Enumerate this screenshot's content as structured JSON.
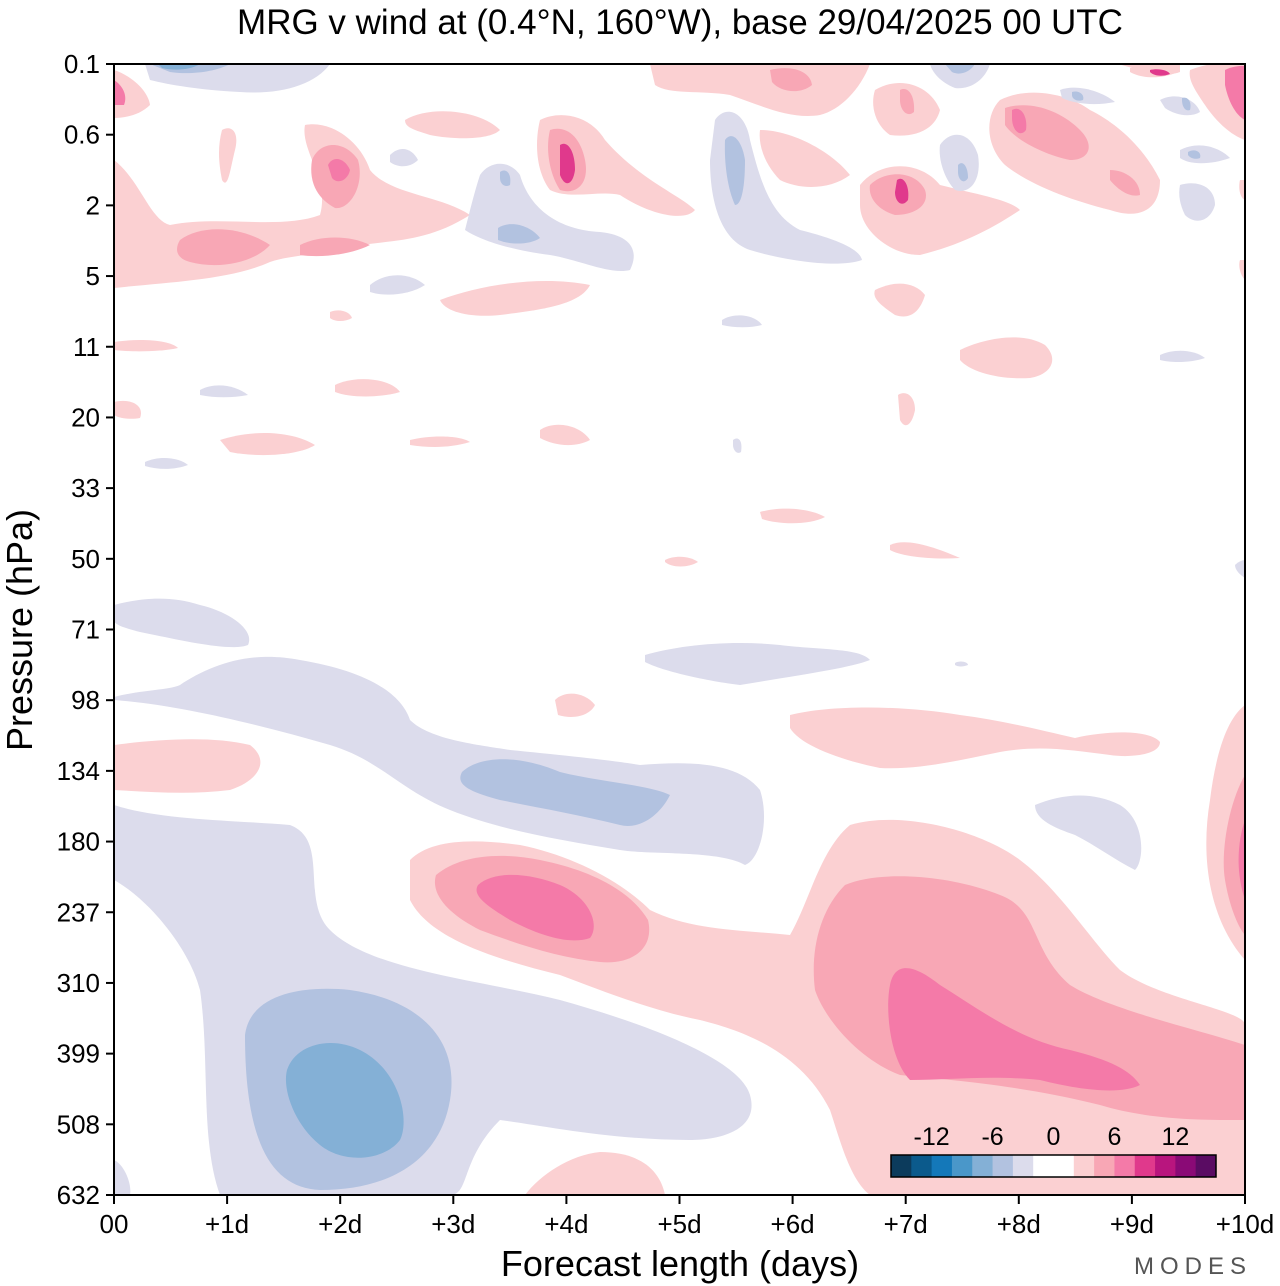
{
  "chart_data": {
    "type": "heatmap",
    "title": "MRG v wind at (0.4°N, 160°W),  base 29/04/2025  00 UTC",
    "xlabel": "Forecast length (days)",
    "ylabel": "Pressure (hPa)",
    "x_ticks": [
      "00",
      "+1d",
      "+2d",
      "+3d",
      "+4d",
      "+5d",
      "+6d",
      "+7d",
      "+8d",
      "+9d",
      "+10d"
    ],
    "xlim_days": [
      0,
      10
    ],
    "y_ticks": [
      "0.1",
      "0.6",
      "2",
      "5",
      "11",
      "20",
      "33",
      "50",
      "71",
      "98",
      "134",
      "180",
      "237",
      "310",
      "399",
      "508",
      "632"
    ],
    "y_axis_inverted": true,
    "ylim_hpa": [
      0.1,
      632
    ],
    "colorbar": {
      "orientation": "horizontal",
      "position": "bottom-right",
      "tick_labels": [
        "-12",
        "-6",
        "0",
        "6",
        "12"
      ],
      "level_step": 2,
      "colors": [
        "#0c3b5c",
        "#0b5a8c",
        "#1478b9",
        "#4a97c9",
        "#84b0d6",
        "#b2c2e0",
        "#dcdcec",
        "#ffffff",
        "#ffffff",
        "#fbd0d2",
        "#f8a7b5",
        "#f47aa8",
        "#e0398c",
        "#b8157e",
        "#8a0a76",
        "#5a0c63"
      ]
    },
    "features": [
      {
        "sign": "negative",
        "peak_ms": -9,
        "day_range": [
          1.8,
          2.4
        ],
        "hpa_range": [
          399,
          508
        ],
        "label": "lower-troposphere easterly-v minimum"
      },
      {
        "sign": "positive",
        "peak_ms": 7,
        "day_range": [
          3.2,
          4.2
        ],
        "hpa_range": [
          180,
          237
        ],
        "label": "upper-troposphere positive v"
      },
      {
        "sign": "positive",
        "peak_ms": 7,
        "day_range": [
          7.0,
          9.2
        ],
        "hpa_range": [
          310,
          508
        ],
        "label": "mid-troposphere positive v"
      },
      {
        "sign": "negative",
        "peak_ms": -5,
        "day_range": [
          3.0,
          5.0
        ],
        "hpa_range": [
          98,
          180
        ],
        "label": "upper-troposphere negative band"
      },
      {
        "sign": "positive",
        "peak_ms": 9,
        "day_range": [
          7.8,
          9.0
        ],
        "hpa_range": [
          0.6,
          2
        ],
        "label": "stratospheric positive v"
      }
    ]
  },
  "branding": {
    "logo": "MODES"
  }
}
